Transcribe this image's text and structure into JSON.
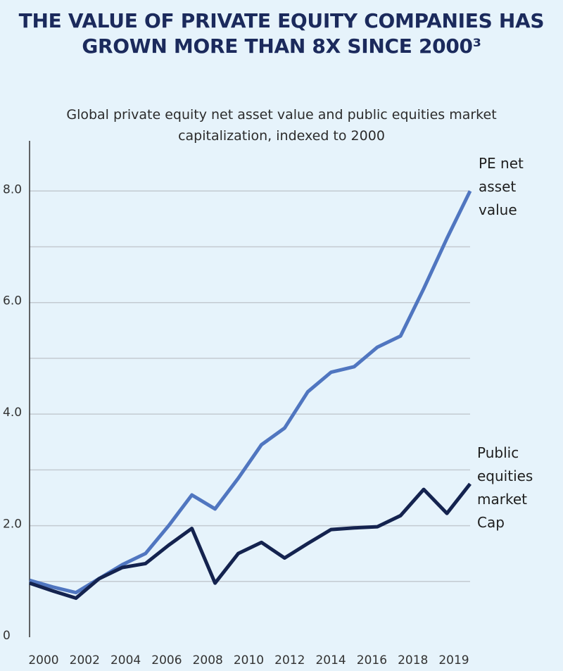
{
  "chart_data": {
    "type": "line",
    "title": "THE VALUE OF PRIVATE EQUITY COMPANIES HAS GROWN MORE THAN 8X SINCE 2000³",
    "subtitle": "Global private equity net asset value and public equities market capitalization, indexed to 2000",
    "x": [
      2000,
      2001,
      2002,
      2003,
      2004,
      2005,
      2006,
      2007,
      2008,
      2009,
      2010,
      2011,
      2012,
      2013,
      2014,
      2015,
      2016,
      2017,
      2018,
      2019
    ],
    "xlim": [
      2000,
      2019
    ],
    "xticks": [
      2000,
      2002,
      2004,
      2006,
      2008,
      2010,
      2012,
      2014,
      2016,
      2018,
      2019
    ],
    "ylim": [
      0,
      8.9
    ],
    "yticks": [
      0,
      {
        "value": 2,
        "label": "2.0"
      },
      {
        "value": 4,
        "label": "4.0"
      },
      {
        "value": 6,
        "label": "6.0"
      },
      {
        "value": 8,
        "label": "8.0"
      }
    ],
    "minor_yticks": [
      1,
      3,
      5,
      7
    ],
    "grid": true,
    "series": [
      {
        "name": "PE net asset value",
        "color": "#5076c0",
        "values": [
          1.02,
          0.9,
          0.8,
          1.05,
          1.3,
          1.5,
          2.0,
          2.55,
          2.3,
          2.85,
          3.45,
          3.75,
          4.4,
          4.75,
          4.85,
          5.2,
          5.4,
          6.25,
          7.15,
          8.0
        ]
      },
      {
        "name": "Public equities market Cap",
        "color": "#14234f",
        "values": [
          0.97,
          0.83,
          0.7,
          1.05,
          1.25,
          1.32,
          1.65,
          1.95,
          0.97,
          1.5,
          1.7,
          1.42,
          1.68,
          1.93,
          1.96,
          1.98,
          2.18,
          2.65,
          2.22,
          2.75
        ]
      }
    ]
  }
}
